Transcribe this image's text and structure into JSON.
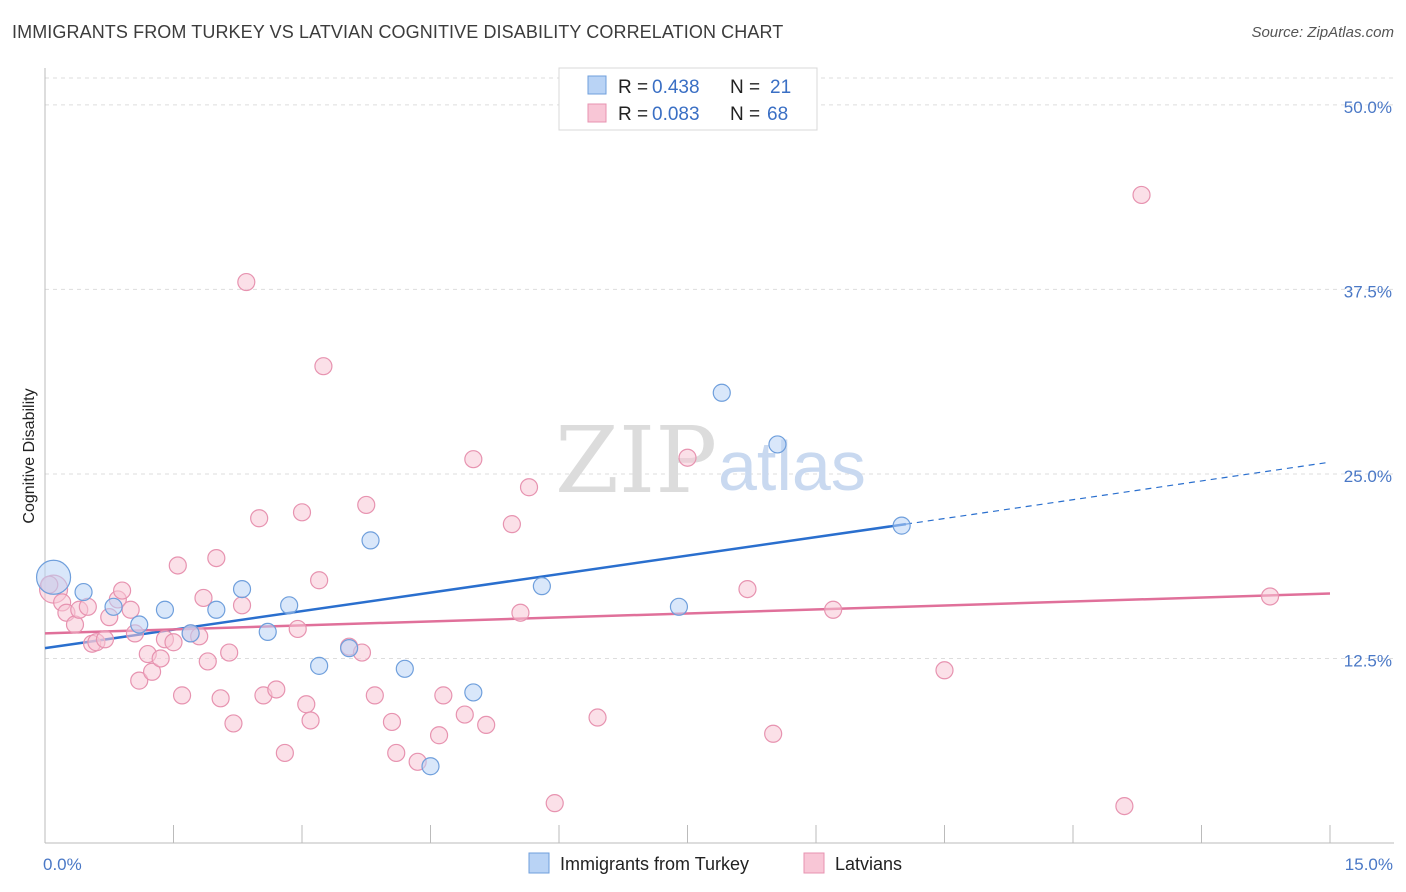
{
  "title": "IMMIGRANTS FROM TURKEY VS LATVIAN COGNITIVE DISABILITY CORRELATION CHART",
  "source": "Source: ZipAtlas.com",
  "watermark": {
    "zip": "ZIP",
    "atlas": "atlas"
  },
  "colors": {
    "turkey_fill": "#b9d3f5",
    "turkey_stroke": "#6f9fdc",
    "turkey_line": "#2a6fce",
    "latvian_fill": "#f8c6d6",
    "latvian_stroke": "#e793b0",
    "latvian_line": "#e0709a",
    "tick": "#4a78c6",
    "grid": "#dddddd"
  },
  "legend": {
    "rows": [
      {
        "r_label": "R = ",
        "r_value": "0.438",
        "n_label": "N = ",
        "n_value": "21"
      },
      {
        "r_label": "R = ",
        "r_value": "0.083",
        "n_label": "N = ",
        "n_value": "68"
      }
    ]
  },
  "chart_data": {
    "type": "scatter",
    "title": "IMMIGRANTS FROM TURKEY VS LATVIAN COGNITIVE DISABILITY CORRELATION CHART",
    "xlabel": "",
    "ylabel": "Cognitive Disability",
    "xlim": [
      0,
      15
    ],
    "ylim": [
      0,
      52.5
    ],
    "x_tick_labels": [
      {
        "value": 0,
        "label": "0.0%"
      },
      {
        "value": 15,
        "label": "15.0%"
      }
    ],
    "x_minor_ticks": [
      1.5,
      3,
      4.5,
      6,
      7.5,
      9,
      10.5,
      12,
      13.5,
      15
    ],
    "y_ticks": [
      {
        "value": 12.5,
        "label": "12.5%"
      },
      {
        "value": 25,
        "label": "25.0%"
      },
      {
        "value": 37.5,
        "label": "37.5%"
      },
      {
        "value": 50,
        "label": "50.0%"
      }
    ],
    "grid": true,
    "legend_position": "top-center",
    "series": [
      {
        "name": "Immigrants from Turkey",
        "color": "#6f9fdc",
        "points": [
          [
            0.1,
            18.0,
            3
          ],
          [
            0.45,
            17.0,
            1
          ],
          [
            0.8,
            16.0,
            1
          ],
          [
            1.1,
            14.8,
            1
          ],
          [
            1.4,
            15.8,
            1
          ],
          [
            1.7,
            14.2,
            1
          ],
          [
            2.0,
            15.8,
            1
          ],
          [
            2.3,
            17.2,
            1
          ],
          [
            2.6,
            14.3,
            1
          ],
          [
            2.85,
            16.1,
            1
          ],
          [
            3.2,
            12.0,
            1
          ],
          [
            3.55,
            13.2,
            1
          ],
          [
            3.8,
            20.5,
            1
          ],
          [
            4.2,
            11.8,
            1
          ],
          [
            4.5,
            5.2,
            1
          ],
          [
            5.0,
            10.2,
            1
          ],
          [
            5.8,
            17.4,
            1
          ],
          [
            7.4,
            16.0,
            1
          ],
          [
            7.9,
            30.5,
            1
          ],
          [
            8.55,
            27.0,
            1
          ],
          [
            10.0,
            21.5,
            1
          ]
        ],
        "trend": {
          "x_start": 0,
          "y_start": 13.2,
          "x_end": 10.05,
          "y_end": 21.6,
          "x_dash_end": 15,
          "y_dash_end": 25.8
        }
      },
      {
        "name": "Latvians",
        "color": "#e793b0",
        "points": [
          [
            0.1,
            17.2,
            2
          ],
          [
            0.2,
            16.3,
            1
          ],
          [
            0.25,
            15.6,
            1
          ],
          [
            0.35,
            14.8,
            1
          ],
          [
            0.4,
            15.8,
            1
          ],
          [
            0.5,
            16.0,
            1
          ],
          [
            0.55,
            13.5,
            1
          ],
          [
            0.6,
            13.6,
            1
          ],
          [
            0.7,
            13.8,
            1
          ],
          [
            0.75,
            15.3,
            1
          ],
          [
            0.85,
            16.5,
            1
          ],
          [
            0.9,
            17.1,
            1
          ],
          [
            1.0,
            15.8,
            1
          ],
          [
            1.05,
            14.2,
            1
          ],
          [
            1.1,
            11.0,
            1
          ],
          [
            1.2,
            12.8,
            1
          ],
          [
            1.25,
            11.6,
            1
          ],
          [
            1.35,
            12.5,
            1
          ],
          [
            1.4,
            13.8,
            1
          ],
          [
            1.5,
            13.6,
            1
          ],
          [
            1.55,
            18.8,
            1
          ],
          [
            1.6,
            10.0,
            1
          ],
          [
            1.7,
            14.2,
            1
          ],
          [
            1.8,
            14.0,
            1
          ],
          [
            1.85,
            16.6,
            1
          ],
          [
            1.9,
            12.3,
            1
          ],
          [
            2.0,
            19.3,
            1
          ],
          [
            2.05,
            9.8,
            1
          ],
          [
            2.15,
            12.9,
            1
          ],
          [
            2.2,
            8.1,
            1
          ],
          [
            2.3,
            16.1,
            1
          ],
          [
            2.35,
            38.0,
            1
          ],
          [
            2.5,
            22.0,
            1
          ],
          [
            2.55,
            10.0,
            1
          ],
          [
            2.7,
            10.4,
            1
          ],
          [
            2.8,
            6.1,
            1
          ],
          [
            2.95,
            14.5,
            1
          ],
          [
            3.0,
            22.4,
            1
          ],
          [
            3.05,
            9.4,
            1
          ],
          [
            3.1,
            8.3,
            1
          ],
          [
            3.2,
            17.8,
            1
          ],
          [
            3.25,
            32.3,
            1
          ],
          [
            3.55,
            13.3,
            1
          ],
          [
            3.7,
            12.9,
            1
          ],
          [
            3.75,
            22.9,
            1
          ],
          [
            3.85,
            10.0,
            1
          ],
          [
            4.05,
            8.2,
            1
          ],
          [
            4.1,
            6.1,
            1
          ],
          [
            4.35,
            5.5,
            1
          ],
          [
            4.6,
            7.3,
            1
          ],
          [
            4.65,
            10.0,
            1
          ],
          [
            4.9,
            8.7,
            1
          ],
          [
            5.0,
            26.0,
            1
          ],
          [
            5.15,
            8.0,
            1
          ],
          [
            5.45,
            21.6,
            1
          ],
          [
            5.55,
            15.6,
            1
          ],
          [
            5.65,
            24.1,
            1
          ],
          [
            5.95,
            2.7,
            1
          ],
          [
            6.45,
            8.5,
            1
          ],
          [
            7.5,
            26.1,
            1
          ],
          [
            8.2,
            17.2,
            1
          ],
          [
            8.5,
            7.4,
            1
          ],
          [
            9.2,
            15.8,
            1
          ],
          [
            10.5,
            11.7,
            1
          ],
          [
            12.6,
            2.5,
            1
          ],
          [
            12.8,
            43.9,
            1
          ],
          [
            14.3,
            16.7,
            1
          ],
          [
            0.05,
            17.5,
            1
          ]
        ],
        "trend": {
          "x_start": 0,
          "y_start": 14.2,
          "x_end": 15,
          "y_end": 16.9
        }
      }
    ]
  }
}
